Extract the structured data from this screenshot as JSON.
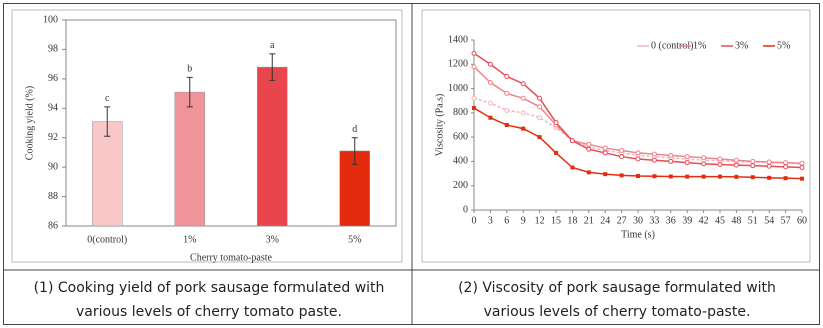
{
  "chart_data": [
    {
      "type": "bar",
      "ylabel": "Cooking yield (%)",
      "xlabel": "Cherry tomato-paste",
      "categories": [
        "0(control)",
        "1%",
        "3%",
        "5%"
      ],
      "values": [
        93.1,
        95.1,
        96.8,
        91.1
      ],
      "errors": [
        1.0,
        1.0,
        0.9,
        0.9
      ],
      "annotations": [
        "c",
        "b",
        "a",
        "d"
      ],
      "colors": [
        "#f8c8c8",
        "#f0939b",
        "#e8454c",
        "#e32a0c"
      ],
      "ylim": [
        86,
        100
      ],
      "yticks": [
        86,
        88,
        90,
        92,
        94,
        96,
        98,
        100
      ]
    },
    {
      "type": "line",
      "ylabel": "Viscosity (Pa.s)",
      "xlabel": "Time (s)",
      "x": [
        0,
        3,
        6,
        9,
        12,
        15,
        18,
        21,
        24,
        27,
        30,
        33,
        36,
        39,
        42,
        45,
        48,
        51,
        54,
        57,
        60
      ],
      "series": [
        {
          "name": "0 (control)",
          "color": "#f6b4ba",
          "values": [
            920,
            880,
            820,
            800,
            760,
            680,
            570,
            520,
            490,
            470,
            450,
            440,
            430,
            420,
            410,
            405,
            400,
            395,
            390,
            385,
            380
          ]
        },
        {
          "name": "1%",
          "color": "#f0848e",
          "values": [
            1180,
            1050,
            960,
            920,
            850,
            700,
            570,
            540,
            510,
            490,
            470,
            460,
            450,
            440,
            430,
            420,
            410,
            400,
            395,
            390,
            385
          ]
        },
        {
          "name": "3%",
          "color": "#e84c56",
          "values": [
            1290,
            1200,
            1100,
            1040,
            920,
            720,
            570,
            500,
            470,
            440,
            420,
            410,
            400,
            390,
            380,
            375,
            370,
            365,
            360,
            355,
            350
          ]
        },
        {
          "name": "5%",
          "color": "#e22e10",
          "values": [
            840,
            760,
            700,
            670,
            600,
            470,
            350,
            310,
            295,
            285,
            280,
            278,
            276,
            275,
            275,
            275,
            273,
            270,
            265,
            262,
            258
          ]
        }
      ],
      "xlim": [
        0,
        60
      ],
      "xticks": [
        0,
        3,
        6,
        9,
        12,
        15,
        18,
        21,
        24,
        27,
        30,
        33,
        36,
        39,
        42,
        45,
        48,
        51,
        54,
        57,
        60
      ],
      "ylim": [
        0,
        1400
      ],
      "yticks": [
        0,
        200,
        400,
        600,
        800,
        1000,
        1200,
        1400
      ],
      "legend": "top-right"
    }
  ],
  "captions": [
    "(1) Cooking yield of pork sausage formulated with various levels of cherry tomato paste.",
    "(2) Viscosity of pork sausage formulated with various levels of cherry tomato-paste."
  ]
}
